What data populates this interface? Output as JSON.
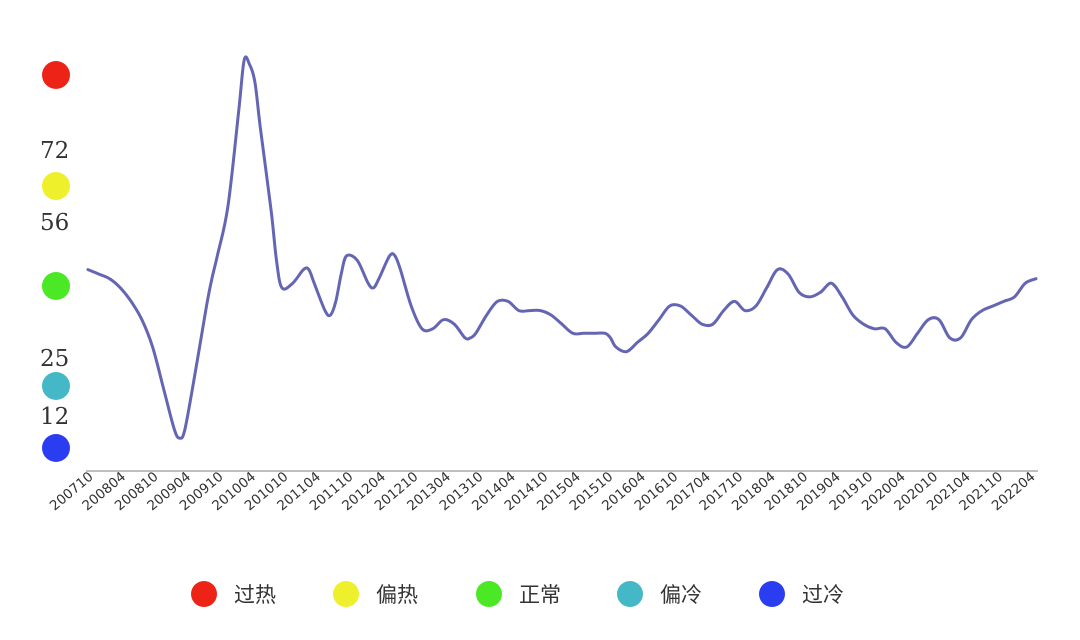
{
  "chart_data": {
    "type": "line",
    "title": "",
    "xlabel": "",
    "ylabel": "",
    "x_start": "200710",
    "x_end": "202206",
    "x_tick_labels": [
      "200710",
      "200804",
      "200810",
      "200904",
      "200910",
      "201004",
      "201010",
      "201104",
      "201110",
      "201204",
      "201210",
      "201304",
      "201310",
      "201404",
      "201410",
      "201504",
      "201510",
      "201604",
      "201610",
      "201704",
      "201710",
      "201804",
      "201810",
      "201904",
      "201910",
      "202004",
      "202010",
      "202104",
      "202110",
      "202204"
    ],
    "y_tick_labels": [
      "12",
      "25",
      "56",
      "72"
    ],
    "ylim": [
      0,
      90
    ],
    "grid": false,
    "zone_markers": [
      {
        "zone": "过冷",
        "color": "#2b3df0",
        "value": 6
      },
      {
        "zone": "偏冷",
        "color": "#45b8c8",
        "value": 19
      },
      {
        "zone": "正常",
        "color": "#4be825",
        "value": 42
      },
      {
        "zone": "偏热",
        "color": "#eef02c",
        "value": 65
      },
      {
        "zone": "过热",
        "color": "#ee2318",
        "value": 89
      }
    ],
    "legend": {
      "placement": "bottom",
      "items": [
        {
          "label": "过热",
          "color": "#ee2318"
        },
        {
          "label": "偏热",
          "color": "#eef02c"
        },
        {
          "label": "正常",
          "color": "#4be825"
        },
        {
          "label": "偏冷",
          "color": "#45b8c8"
        },
        {
          "label": "过冷",
          "color": "#2b3df0"
        }
      ]
    },
    "series": [
      {
        "color": "#6466b4",
        "points": [
          [
            "200710",
            44
          ],
          [
            "200712",
            43
          ],
          [
            "200802",
            42
          ],
          [
            "200804",
            40
          ],
          [
            "200806",
            37
          ],
          [
            "200808",
            33
          ],
          [
            "200810",
            27
          ],
          [
            "200812",
            18
          ],
          [
            "200902",
            9
          ],
          [
            "200903",
            7
          ],
          [
            "200904",
            9
          ],
          [
            "200906",
            22
          ],
          [
            "200908",
            36
          ],
          [
            "200909",
            42
          ],
          [
            "200910",
            47
          ],
          [
            "200912",
            58
          ],
          [
            "201002",
            79
          ],
          [
            "201003",
            90
          ],
          [
            "201004",
            89
          ],
          [
            "201005",
            85
          ],
          [
            "201006",
            75
          ],
          [
            "201008",
            57
          ],
          [
            "201009",
            46
          ],
          [
            "201010",
            40
          ],
          [
            "201012",
            41
          ],
          [
            "201102",
            44
          ],
          [
            "201103",
            44
          ],
          [
            "201104",
            41
          ],
          [
            "201106",
            35
          ],
          [
            "201107",
            34
          ],
          [
            "201108",
            37
          ],
          [
            "201109",
            43
          ],
          [
            "201110",
            47
          ],
          [
            "201112",
            46
          ],
          [
            "201202",
            41
          ],
          [
            "201203",
            40
          ],
          [
            "201204",
            42
          ],
          [
            "201206",
            47
          ],
          [
            "201207",
            47
          ],
          [
            "201208",
            44
          ],
          [
            "201210",
            36
          ],
          [
            "201212",
            31
          ],
          [
            "201302",
            31
          ],
          [
            "201304",
            33
          ],
          [
            "201306",
            32
          ],
          [
            "201308",
            29
          ],
          [
            "201309",
            29
          ],
          [
            "201310",
            30
          ],
          [
            "201312",
            34
          ],
          [
            "201402",
            37
          ],
          [
            "201404",
            37
          ],
          [
            "201406",
            35
          ],
          [
            "201408",
            35
          ],
          [
            "201410",
            35
          ],
          [
            "201412",
            34
          ],
          [
            "201502",
            32
          ],
          [
            "201504",
            30
          ],
          [
            "201506",
            30
          ],
          [
            "201508",
            30
          ],
          [
            "201510",
            30
          ],
          [
            "201511",
            29
          ],
          [
            "201512",
            27
          ],
          [
            "201602",
            26
          ],
          [
            "201604",
            28
          ],
          [
            "201606",
            30
          ],
          [
            "201608",
            33
          ],
          [
            "201610",
            36
          ],
          [
            "201612",
            36
          ],
          [
            "201702",
            34
          ],
          [
            "201704",
            32
          ],
          [
            "201706",
            32
          ],
          [
            "201708",
            35
          ],
          [
            "201710",
            37
          ],
          [
            "201712",
            35
          ],
          [
            "201802",
            36
          ],
          [
            "201804",
            40
          ],
          [
            "201806",
            44
          ],
          [
            "201808",
            43
          ],
          [
            "201810",
            39
          ],
          [
            "201812",
            38
          ],
          [
            "201902",
            39
          ],
          [
            "201904",
            41
          ],
          [
            "201906",
            38
          ],
          [
            "201908",
            34
          ],
          [
            "201910",
            32
          ],
          [
            "201912",
            31
          ],
          [
            "202002",
            31
          ],
          [
            "202004",
            28
          ],
          [
            "202006",
            27
          ],
          [
            "202008",
            30
          ],
          [
            "202010",
            33
          ],
          [
            "202012",
            33
          ],
          [
            "202102",
            29
          ],
          [
            "202104",
            29
          ],
          [
            "202106",
            33
          ],
          [
            "202108",
            35
          ],
          [
            "202110",
            36
          ],
          [
            "202112",
            37
          ],
          [
            "202202",
            38
          ],
          [
            "202204",
            41
          ],
          [
            "202206",
            42
          ]
        ]
      }
    ]
  }
}
